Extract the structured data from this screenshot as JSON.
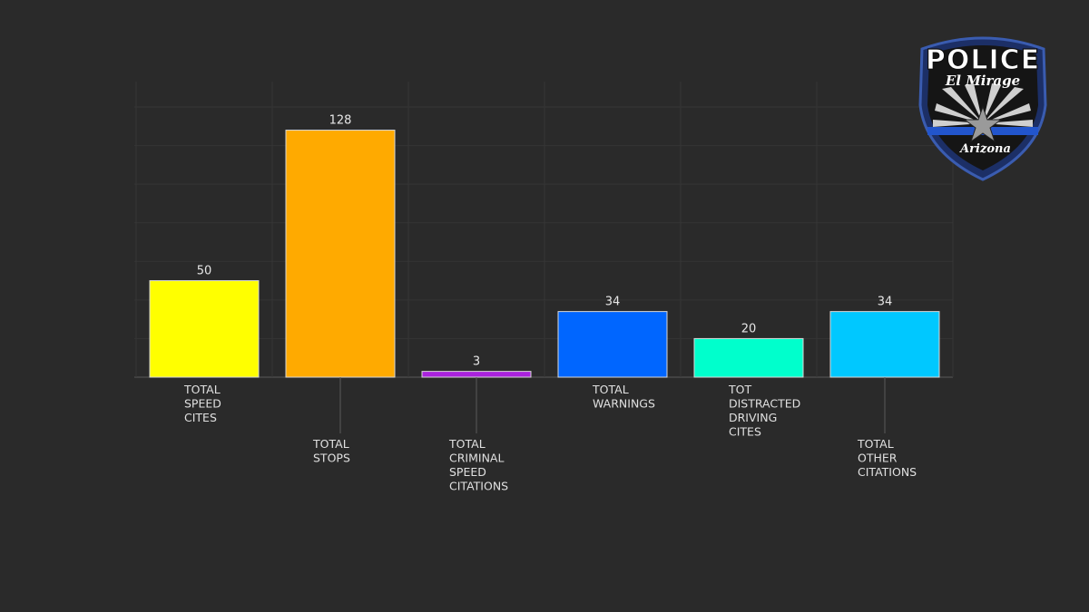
{
  "chart_data": {
    "type": "bar",
    "title": "",
    "xlabel": "",
    "ylabel": "",
    "ylim": [
      0,
      140
    ],
    "grid": true,
    "categories": [
      [
        "TOTAL",
        "SPEED",
        "CITES"
      ],
      [
        "TOTAL",
        "STOPS"
      ],
      [
        "TOTAL",
        "CRIMINAL",
        "SPEED",
        "CITATIONS"
      ],
      [
        "TOTAL",
        "WARNINGS"
      ],
      [
        "TOT",
        "DISTRACTED",
        "DRIVING",
        "CITES"
      ],
      [
        "TOTAL",
        "OTHER",
        "CITATIONS"
      ]
    ],
    "values": [
      50,
      128,
      3,
      34,
      20,
      34
    ],
    "value_labels": [
      "50",
      "128",
      "3",
      "34",
      "20",
      "34"
    ],
    "colors": [
      "#ffff00",
      "#ffaa00",
      "#aa22dd",
      "#0066ff",
      "#00ffcc",
      "#00c8ff"
    ],
    "label_staggered": [
      false,
      true,
      true,
      false,
      false,
      true
    ]
  },
  "logo": {
    "title": "POLICE",
    "city": "El Mirage",
    "state": "Arizona",
    "colors": {
      "border": "#2a4a9a",
      "band": "#2255cc",
      "dark": "#111111"
    }
  }
}
